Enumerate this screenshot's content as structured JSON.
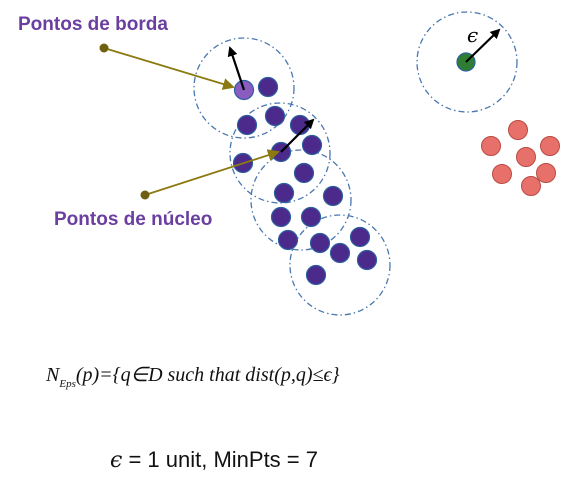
{
  "labels": {
    "border_points": "Pontos de borda",
    "core_points": "Pontos de núcleo"
  },
  "formula": {
    "N": "N",
    "sub": "Eps",
    "rest": "(p)={q∈D such that dist(p,q)≤ϵ}"
  },
  "radius_symbol": "ϵ",
  "params": {
    "eps_symbol": "ϵ",
    "text": " = 1 unit, MinPts = 7"
  },
  "colors": {
    "core": "#4b2a8c",
    "border": "#8a5cc0",
    "noise": "#2e7d32",
    "other_cluster": "#e8706a",
    "circle_stroke": "#4a78b0",
    "pointer_line": "#8a7a10"
  }
}
